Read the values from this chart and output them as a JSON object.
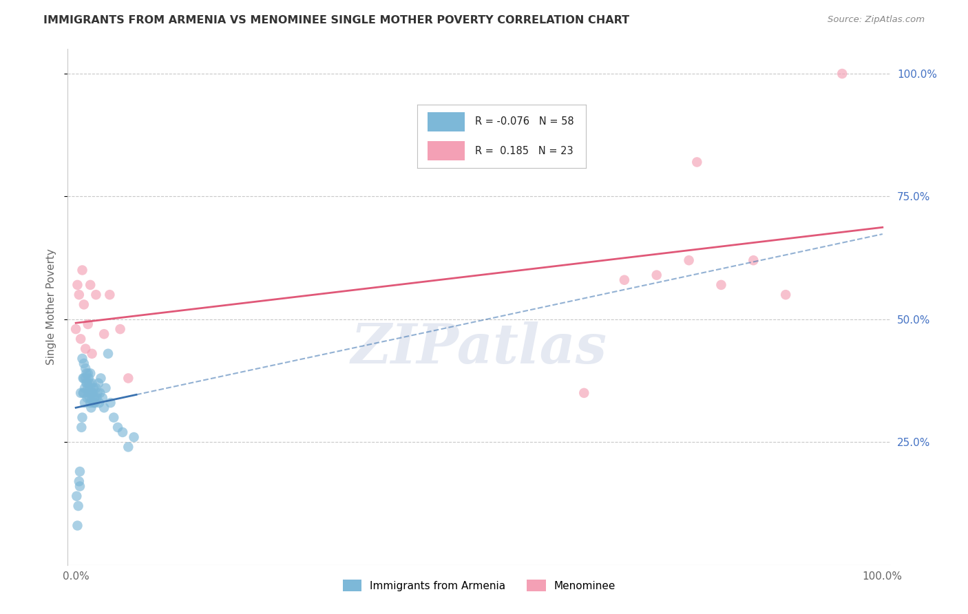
{
  "title": "IMMIGRANTS FROM ARMENIA VS MENOMINEE SINGLE MOTHER POVERTY CORRELATION CHART",
  "source": "Source: ZipAtlas.com",
  "ylabel": "Single Mother Poverty",
  "blue_label": "Immigrants from Armenia",
  "pink_label": "Menominee",
  "blue_R": -0.076,
  "blue_N": 58,
  "pink_R": 0.185,
  "pink_N": 23,
  "blue_color": "#7db8d8",
  "pink_color": "#f4a0b5",
  "blue_line_color": "#3a72b0",
  "pink_line_color": "#e05878",
  "background_color": "#ffffff",
  "grid_color": "#c8c8c8",
  "watermark": "ZIPatlas",
  "blue_x": [
    0.001,
    0.002,
    0.003,
    0.004,
    0.005,
    0.005,
    0.006,
    0.007,
    0.008,
    0.008,
    0.009,
    0.009,
    0.01,
    0.01,
    0.01,
    0.011,
    0.011,
    0.012,
    0.012,
    0.013,
    0.013,
    0.014,
    0.014,
    0.015,
    0.015,
    0.016,
    0.016,
    0.017,
    0.017,
    0.018,
    0.018,
    0.018,
    0.019,
    0.019,
    0.02,
    0.02,
    0.021,
    0.022,
    0.022,
    0.023,
    0.024,
    0.025,
    0.026,
    0.027,
    0.028,
    0.029,
    0.03,
    0.031,
    0.033,
    0.035,
    0.037,
    0.04,
    0.043,
    0.047,
    0.052,
    0.058,
    0.065,
    0.072
  ],
  "blue_y": [
    0.14,
    0.08,
    0.12,
    0.17,
    0.16,
    0.19,
    0.35,
    0.28,
    0.3,
    0.42,
    0.35,
    0.38,
    0.35,
    0.38,
    0.41,
    0.33,
    0.36,
    0.38,
    0.4,
    0.37,
    0.39,
    0.34,
    0.37,
    0.36,
    0.39,
    0.35,
    0.38,
    0.34,
    0.37,
    0.33,
    0.36,
    0.39,
    0.32,
    0.35,
    0.34,
    0.37,
    0.35,
    0.33,
    0.36,
    0.34,
    0.33,
    0.36,
    0.34,
    0.35,
    0.37,
    0.33,
    0.35,
    0.38,
    0.34,
    0.32,
    0.36,
    0.43,
    0.33,
    0.3,
    0.28,
    0.27,
    0.24,
    0.26
  ],
  "pink_x": [
    0.0,
    0.002,
    0.004,
    0.006,
    0.008,
    0.01,
    0.012,
    0.015,
    0.018,
    0.02,
    0.025,
    0.035,
    0.042,
    0.055,
    0.065,
    0.63,
    0.68,
    0.72,
    0.76,
    0.8,
    0.84,
    0.88,
    0.95
  ],
  "pink_y": [
    0.48,
    0.57,
    0.55,
    0.46,
    0.6,
    0.53,
    0.44,
    0.49,
    0.57,
    0.43,
    0.55,
    0.47,
    0.55,
    0.48,
    0.38,
    0.35,
    0.58,
    0.59,
    0.62,
    0.57,
    0.62,
    0.55,
    1.0
  ],
  "pink_outlier_x": [
    0.77
  ],
  "pink_outlier_y": [
    0.82
  ],
  "ylim": [
    0.0,
    1.05
  ],
  "xlim": [
    -0.01,
    1.01
  ],
  "yticks": [
    0.25,
    0.5,
    0.75,
    1.0
  ],
  "ytick_right_labels": [
    "25.0%",
    "50.0%",
    "75.0%",
    "100.0%"
  ],
  "xlabel_ticks": [
    0.0,
    1.0
  ],
  "xlabel_labels": [
    "0.0%",
    "100.0%"
  ]
}
